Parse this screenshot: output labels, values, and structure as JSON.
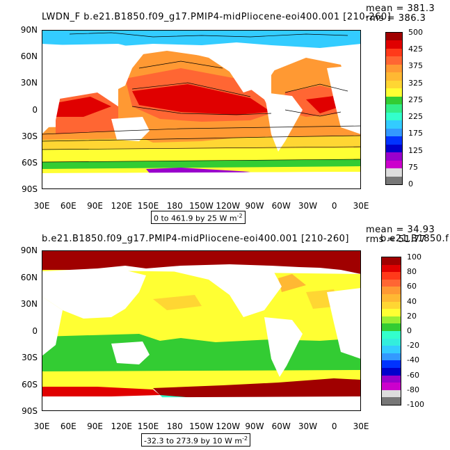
{
  "panel1": {
    "title": "LWDN_F  b.e21.B1850.f09_g17.PMIP4-midPliocene-eoi400.001  [210-260]",
    "mean": "mean = 381.3",
    "rms": "rms = 386.3",
    "lat_labels": [
      "90N",
      "60N",
      "30N",
      "0",
      "30S",
      "60S",
      "90S"
    ],
    "lon_labels": [
      "30E",
      "60E",
      "90E",
      "120E",
      "150E",
      "180",
      "150W",
      "120W",
      "90W",
      "60W",
      "30W",
      "0",
      "30E"
    ],
    "range_text": "0 to 461.9 by 25  W m",
    "range_sup": "-2",
    "colorbar_labels": [
      "500",
      "425",
      "375",
      "325",
      "275",
      "225",
      "175",
      "125",
      "75",
      "0"
    ],
    "colors": [
      "#a00000",
      "#e00000",
      "#ff3a1a",
      "#ff6633",
      "#ff9933",
      "#ffb833",
      "#ffd633",
      "#ffff33",
      "#33cc33",
      "#33ee88",
      "#33ffcc",
      "#33ccff",
      "#3399ff",
      "#0033ff",
      "#0000cc",
      "#9900cc",
      "#cc00cc",
      "#dddddd",
      "#777777"
    ]
  },
  "panel2": {
    "title": "b.e21.B1850.f09_g17.PMIP4-midPliocene-eoi400.001  [210-260]",
    "title_overflow": "b.e21.B1850.f",
    "mean": "mean = 34.93",
    "rms": "rms = 51.77",
    "lat_labels": [
      "90N",
      "60N",
      "30N",
      "0",
      "30S",
      "60S",
      "90S"
    ],
    "lon_labels": [
      "30E",
      "60E",
      "90E",
      "120E",
      "150E",
      "180",
      "150W",
      "120W",
      "90W",
      "60W",
      "30W",
      "0",
      "30E"
    ],
    "range_text": "-32.3 to 273.9 by 10  W m",
    "range_sup": "-2",
    "colorbar_labels": [
      "100",
      "80",
      "60",
      "40",
      "20",
      "0",
      "-20",
      "-40",
      "-60",
      "-80",
      "-100"
    ],
    "colors": [
      "#a00000",
      "#e00000",
      "#ff3a1a",
      "#ff6633",
      "#ff9933",
      "#ffb833",
      "#ffd633",
      "#ffff33",
      "#99ee33",
      "#33cc33",
      "#33ffcc",
      "#33eedd",
      "#33ccff",
      "#3399ff",
      "#0033ff",
      "#0000cc",
      "#9900cc",
      "#cc00cc",
      "#dddddd",
      "#777777"
    ]
  }
}
